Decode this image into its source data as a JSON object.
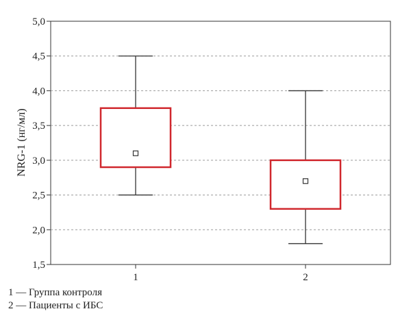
{
  "chart_data": {
    "type": "box",
    "ylabel": "NRG-1 (нг/мл)",
    "ylim": [
      1.5,
      5.0
    ],
    "yticks": [
      "1,5",
      "2,0",
      "2,5",
      "3,0",
      "3,5",
      "4,0",
      "4,5",
      "5,0"
    ],
    "categories": [
      "1",
      "2"
    ],
    "grid": true,
    "boxes": [
      {
        "category": "1",
        "whisker_low": 2.5,
        "q1": 2.9,
        "median": 3.1,
        "q3": 3.75,
        "whisker_high": 4.5
      },
      {
        "category": "2",
        "whisker_low": 1.8,
        "q1": 2.3,
        "median": 2.7,
        "q3": 3.0,
        "whisker_high": 4.0
      }
    ],
    "colors": {
      "box": "#d0272d",
      "whisker": "#333333",
      "grid": "#9a9a9a"
    }
  },
  "legend": [
    "1 — Группа контроля",
    "2 — Пациенты с ИБС"
  ]
}
